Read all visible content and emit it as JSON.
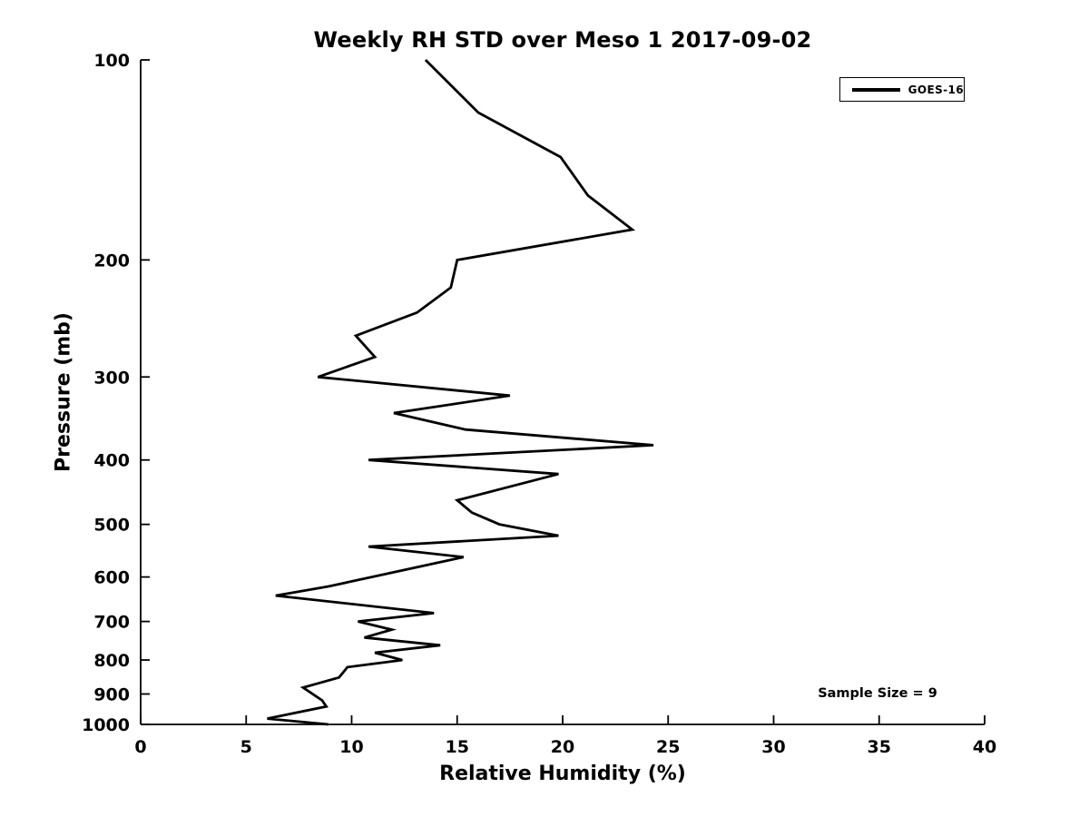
{
  "colors": {
    "line": "#000000",
    "text": "#000000",
    "background": "#ffffff"
  },
  "chart_data": {
    "type": "line",
    "title": "Weekly RH STD over Meso 1 2017-09-02",
    "xlabel": "Relative Humidity (%)",
    "ylabel": "Pressure (mb)",
    "xlim": [
      0,
      40
    ],
    "ylim": [
      100,
      1000
    ],
    "y_scale": "log",
    "y_inverted": true,
    "x_ticks": [
      0,
      5,
      10,
      15,
      20,
      25,
      30,
      35,
      40
    ],
    "y_ticks": [
      100,
      200,
      300,
      400,
      500,
      600,
      700,
      800,
      900,
      1000
    ],
    "grid": false,
    "legend": {
      "position": "upper right",
      "entries": [
        {
          "label": "GOES-16",
          "color": "#000000"
        }
      ]
    },
    "annotation": "Sample Size = 9",
    "series": [
      {
        "name": "GOES-16",
        "points_format": "[relative_humidity_percent, pressure_mb]",
        "points": [
          [
            13.5,
            100
          ],
          [
            16.0,
            120
          ],
          [
            19.9,
            140
          ],
          [
            21.2,
            160
          ],
          [
            23.3,
            180
          ],
          [
            15.0,
            200
          ],
          [
            14.7,
            220
          ],
          [
            13.1,
            240
          ],
          [
            10.2,
            260
          ],
          [
            11.1,
            280
          ],
          [
            8.4,
            300
          ],
          [
            17.5,
            320
          ],
          [
            12.0,
            340
          ],
          [
            15.4,
            360
          ],
          [
            24.3,
            380
          ],
          [
            10.8,
            400
          ],
          [
            19.8,
            420
          ],
          [
            15.0,
            460
          ],
          [
            15.7,
            480
          ],
          [
            17.0,
            500
          ],
          [
            19.8,
            520
          ],
          [
            10.8,
            540
          ],
          [
            15.3,
            560
          ],
          [
            8.9,
            620
          ],
          [
            6.4,
            640
          ],
          [
            13.9,
            680
          ],
          [
            10.3,
            700
          ],
          [
            11.9,
            720
          ],
          [
            10.6,
            740
          ],
          [
            14.2,
            760
          ],
          [
            11.1,
            780
          ],
          [
            12.4,
            800
          ],
          [
            9.8,
            820
          ],
          [
            9.4,
            850
          ],
          [
            7.7,
            880
          ],
          [
            8.6,
            920
          ],
          [
            8.8,
            940
          ],
          [
            6.0,
            980
          ],
          [
            8.9,
            1000
          ]
        ]
      }
    ]
  }
}
